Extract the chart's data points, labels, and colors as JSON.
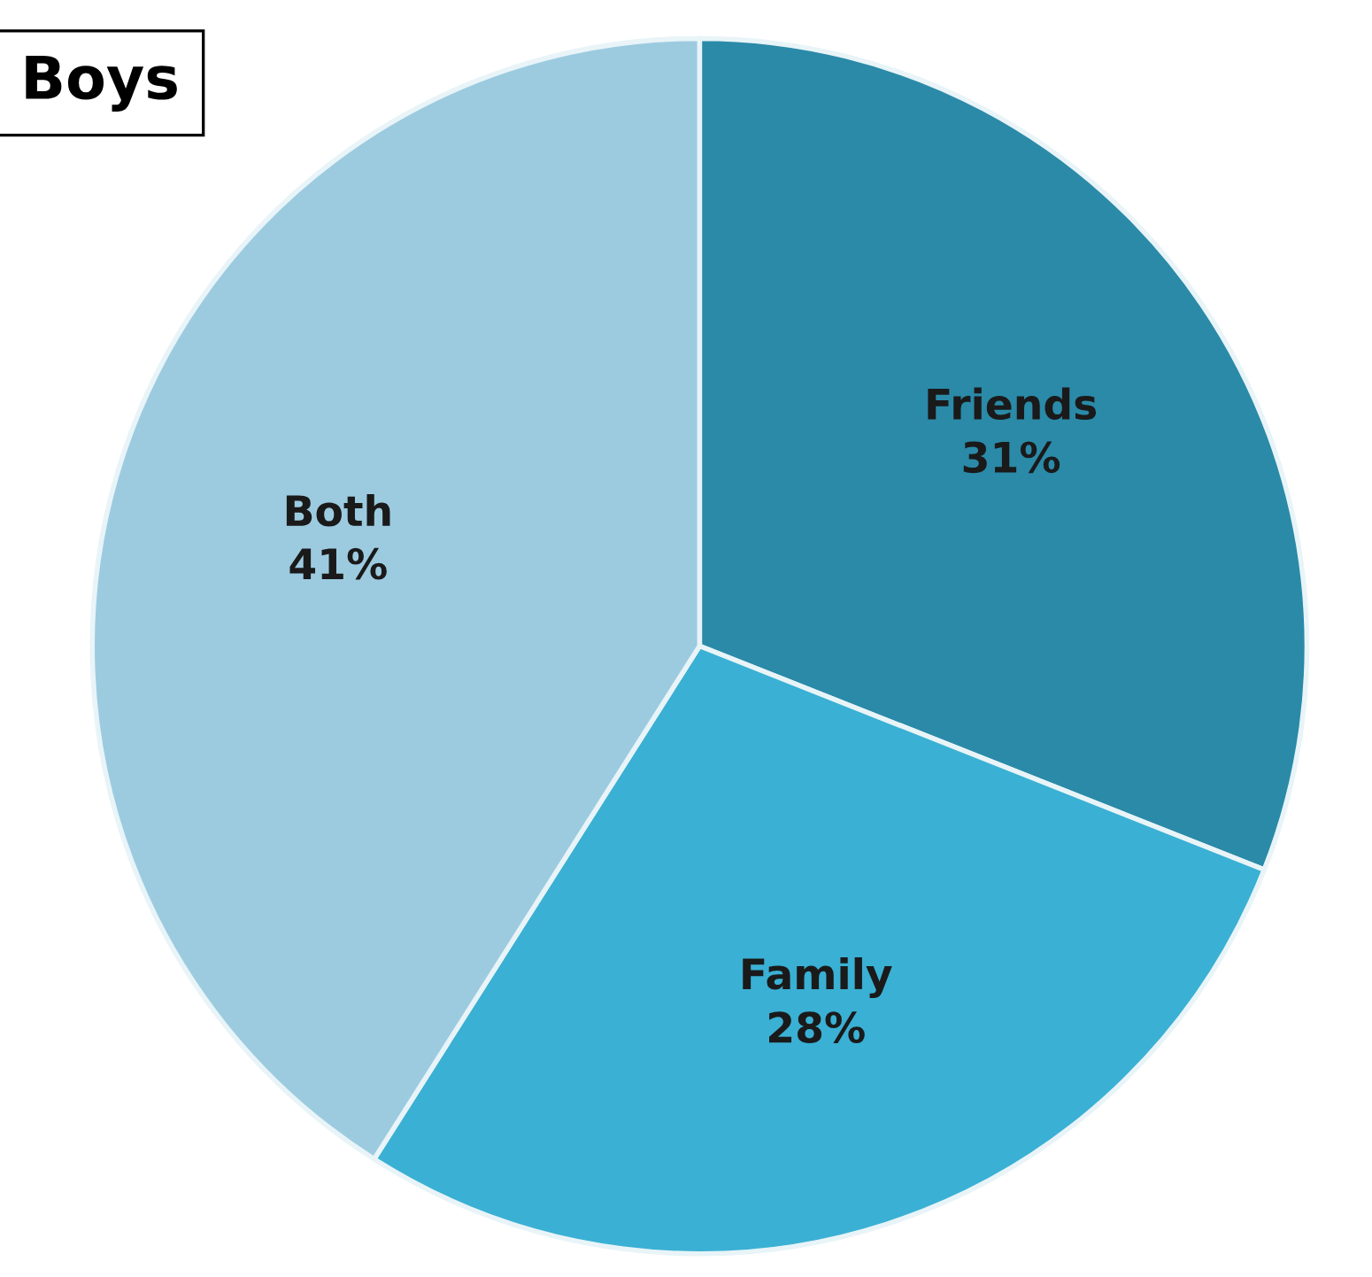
{
  "chart_data": {
    "type": "pie",
    "title": "Boys",
    "categories": [
      "Friends",
      "Family",
      "Both"
    ],
    "values": [
      31,
      28,
      41
    ],
    "colors": [
      "#2a8aa8",
      "#3ab0d4",
      "#9ccbe0"
    ],
    "value_labels": [
      "31%",
      "28%",
      "41%"
    ]
  }
}
